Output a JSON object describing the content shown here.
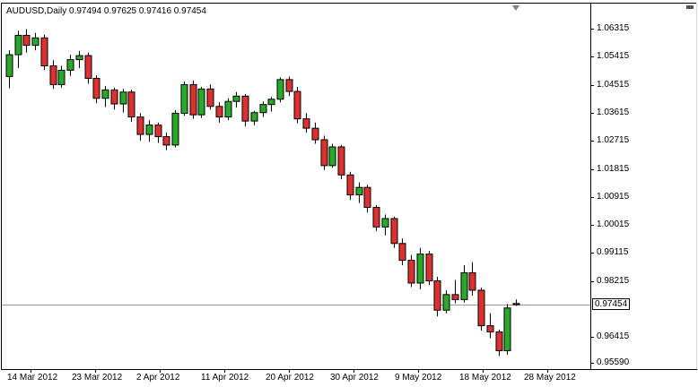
{
  "header": {
    "text": "AUDUSD,Daily 0.97494 0.97625 0.97416 0.97454"
  },
  "chart_data": {
    "type": "candlestick",
    "symbol": "AUDUSD",
    "period": "Daily",
    "last_ohlc": {
      "open": "0.97494",
      "high": "0.97625",
      "low": "0.97416",
      "close": "0.97454"
    },
    "current_price": 0.97454,
    "current_price_label": "0.97454",
    "y_axis_labels": [
      "1.06315",
      "1.05415",
      "1.04515",
      "1.03615",
      "1.02715",
      "1.01815",
      "1.00915",
      "1.00015",
      "0.99115",
      "0.98215",
      "0.96415",
      "0.95590"
    ],
    "x_axis_labels": [
      "14 Mar 2012",
      "23 Mar 2012",
      "2 Apr 2012",
      "11 Apr 2012",
      "20 Apr 2012",
      "30 Apr 2012",
      "9 May 2012",
      "18 May 2012",
      "28 May 2012"
    ],
    "ylim": [
      0.9559,
      1.06315
    ],
    "grid": "off",
    "candles": [
      [
        1.0478,
        1.0562,
        1.044,
        1.0548
      ],
      [
        1.0548,
        1.0625,
        1.0505,
        1.061
      ],
      [
        1.061,
        1.063,
        1.0555,
        1.0578
      ],
      [
        1.0578,
        1.0618,
        1.0562,
        1.0602
      ],
      [
        1.0602,
        1.0612,
        1.0498,
        1.0512
      ],
      [
        1.0512,
        1.053,
        1.0438,
        1.0452
      ],
      [
        1.0452,
        1.0512,
        1.0442,
        1.0498
      ],
      [
        1.0498,
        1.0548,
        1.048,
        1.0532
      ],
      [
        1.0532,
        1.056,
        1.0505,
        1.0545
      ],
      [
        1.0545,
        1.0555,
        1.0455,
        1.0472
      ],
      [
        1.0472,
        1.0482,
        1.0392,
        1.0408
      ],
      [
        1.0408,
        1.0448,
        1.038,
        1.0435
      ],
      [
        1.0435,
        1.0442,
        1.0372,
        1.039
      ],
      [
        1.039,
        1.0438,
        1.0362,
        1.0428
      ],
      [
        1.0428,
        1.0436,
        1.0332,
        1.0348
      ],
      [
        1.0348,
        1.036,
        1.0272,
        1.0292
      ],
      [
        1.0292,
        1.0338,
        1.0268,
        1.0322
      ],
      [
        1.0322,
        1.033,
        1.0265,
        1.0285
      ],
      [
        1.0285,
        1.0298,
        1.0242,
        1.0258
      ],
      [
        1.0258,
        1.037,
        1.025,
        1.036
      ],
      [
        1.036,
        1.0462,
        1.0352,
        1.0452
      ],
      [
        1.0452,
        1.0465,
        1.0342,
        1.0355
      ],
      [
        1.0355,
        1.0445,
        1.0345,
        1.0438
      ],
      [
        1.0438,
        1.0452,
        1.0372,
        1.0382
      ],
      [
        1.0382,
        1.0395,
        1.033,
        1.0348
      ],
      [
        1.0348,
        1.0408,
        1.0338,
        1.0398
      ],
      [
        1.0398,
        1.0428,
        1.0378,
        1.0415
      ],
      [
        1.0415,
        1.0422,
        1.0318,
        1.0335
      ],
      [
        1.0335,
        1.0368,
        1.0322,
        1.0362
      ],
      [
        1.0362,
        1.0398,
        1.0348,
        1.0388
      ],
      [
        1.0388,
        1.0412,
        1.0365,
        1.0405
      ],
      [
        1.0405,
        1.0475,
        1.0395,
        1.0468
      ],
      [
        1.0468,
        1.0478,
        1.0415,
        1.043
      ],
      [
        1.043,
        1.0445,
        1.0328,
        1.0342
      ],
      [
        1.0342,
        1.036,
        1.0298,
        1.0312
      ],
      [
        1.0312,
        1.033,
        1.0262,
        1.0275
      ],
      [
        1.0275,
        1.0288,
        1.0178,
        1.0192
      ],
      [
        1.0192,
        1.0262,
        1.0185,
        1.0252
      ],
      [
        1.0252,
        1.0258,
        1.0148,
        1.0162
      ],
      [
        1.0162,
        1.0172,
        1.0082,
        1.0098
      ],
      [
        1.0098,
        1.0138,
        1.0072,
        1.0122
      ],
      [
        1.0122,
        1.013,
        1.0042,
        1.0058
      ],
      [
        1.0058,
        1.0065,
        0.9982,
        0.9995
      ],
      [
        0.9995,
        1.0035,
        0.9968,
        1.0022
      ],
      [
        1.0022,
        1.0028,
        0.9928,
        0.9942
      ],
      [
        0.9942,
        0.9958,
        0.9872,
        0.9888
      ],
      [
        0.9888,
        0.9905,
        0.9802,
        0.9815
      ],
      [
        0.9815,
        0.9928,
        0.9795,
        0.9908
      ],
      [
        0.9908,
        0.9918,
        0.9808,
        0.9822
      ],
      [
        0.9822,
        0.9835,
        0.9708,
        0.9728
      ],
      [
        0.9728,
        0.9792,
        0.9718,
        0.9778
      ],
      [
        0.9778,
        0.9825,
        0.975,
        0.9762
      ],
      [
        0.9762,
        0.9872,
        0.9752,
        0.9848
      ],
      [
        0.9848,
        0.9882,
        0.9775,
        0.9792
      ],
      [
        0.9792,
        0.98,
        0.9662,
        0.9678
      ],
      [
        0.9678,
        0.9718,
        0.9638,
        0.9658
      ],
      [
        0.9658,
        0.9665,
        0.9581,
        0.9598
      ],
      [
        0.9598,
        0.9748,
        0.9585,
        0.9735
      ],
      [
        0.97494,
        0.97625,
        0.97416,
        0.97454
      ]
    ],
    "colors": {
      "background": "#ffffff",
      "text": "#000000",
      "outline": "#000000",
      "bull": "#29a829",
      "bear": "#db3131",
      "price_line": "#9b9b9b",
      "border": "#000000",
      "shift_marker": "#808080"
    }
  }
}
